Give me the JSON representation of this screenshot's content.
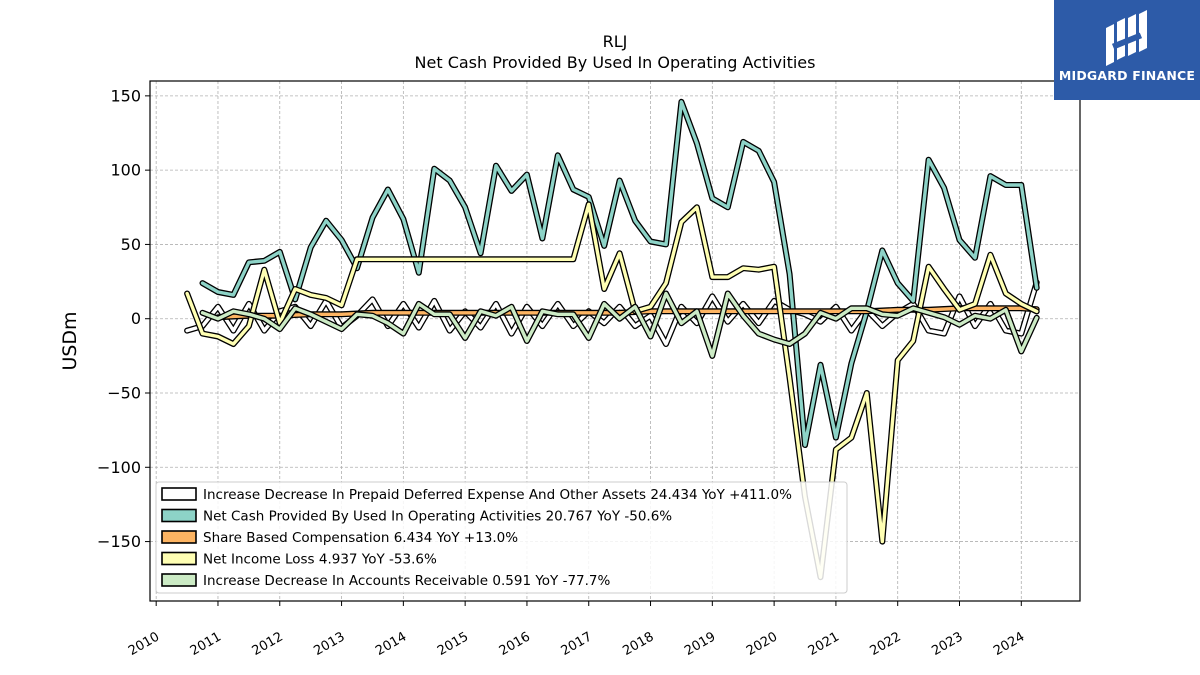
{
  "logo": {
    "text": "MIDGARD FINANCE"
  },
  "chart_data": {
    "type": "line",
    "title": "RLJ",
    "subtitle": "Net Cash Provided By Used In Operating Activities",
    "ylabel": "USDm",
    "xlabel": "",
    "ylim": [
      -190,
      160
    ],
    "xlim": [
      2009.9,
      2024.95
    ],
    "yticks": [
      -150,
      -100,
      -50,
      0,
      50,
      100,
      150
    ],
    "ytick_labels": [
      "−150",
      "−100",
      "−50",
      "0",
      "50",
      "100",
      "150"
    ],
    "xticks": [
      2010,
      2011,
      2012,
      2013,
      2014,
      2015,
      2016,
      2017,
      2018,
      2019,
      2020,
      2021,
      2022,
      2023,
      2024
    ],
    "xtick_labels": [
      "2010",
      "2011",
      "2012",
      "2013",
      "2014",
      "2015",
      "2016",
      "2017",
      "2018",
      "2019",
      "2020",
      "2021",
      "2022",
      "2023",
      "2024"
    ],
    "grid": true,
    "legend_position": "lower-left",
    "series": [
      {
        "name": "Increase Decrease In Prepaid Deferred Expense And Other Assets",
        "legend_label": "Increase Decrease In Prepaid Deferred Expense And Other Assets  24.434 YoY +411.0%",
        "color": "#ffffff",
        "x": [
          2010.5,
          2010.75,
          2011.0,
          2011.25,
          2011.5,
          2011.75,
          2012.0,
          2012.25,
          2012.5,
          2012.75,
          2013.0,
          2013.25,
          2013.5,
          2013.75,
          2014.0,
          2014.25,
          2014.5,
          2014.75,
          2015.0,
          2015.25,
          2015.5,
          2015.75,
          2016.0,
          2016.25,
          2016.5,
          2016.75,
          2017.0,
          2017.25,
          2017.5,
          2017.75,
          2018.0,
          2018.25,
          2018.5,
          2018.75,
          2019.0,
          2019.25,
          2019.5,
          2019.75,
          2020.0,
          2020.25,
          2020.5,
          2020.75,
          2021.0,
          2021.25,
          2021.5,
          2021.75,
          2022.0,
          2022.25,
          2022.5,
          2022.75,
          2023.0,
          2023.25,
          2023.5,
          2023.75,
          2024.0,
          2024.25
        ],
        "y": [
          -8,
          -5,
          8,
          -8,
          10,
          -8,
          5,
          8,
          -5,
          12,
          -6,
          2,
          13,
          -5,
          10,
          -6,
          12,
          -8,
          5,
          -6,
          10,
          -10,
          8,
          -5,
          10,
          -5,
          5,
          -3,
          8,
          -5,
          2,
          -17,
          8,
          -3,
          15,
          -2,
          10,
          -3,
          12,
          6,
          3,
          -2,
          8,
          -8,
          6,
          -5,
          4,
          10,
          -8,
          -10,
          15,
          -5,
          10,
          -8,
          -10,
          24.434
        ]
      },
      {
        "name": "Net Cash Provided By Used In Operating Activities",
        "legend_label": "Net Cash Provided By Used In Operating Activities  20.767 YoY -50.6%",
        "color": "#8dd3c7",
        "x": [
          2010.75,
          2011.0,
          2011.25,
          2011.5,
          2011.75,
          2012.0,
          2012.25,
          2012.5,
          2012.75,
          2013.0,
          2013.25,
          2013.5,
          2013.75,
          2014.0,
          2014.25,
          2014.5,
          2014.75,
          2015.0,
          2015.25,
          2015.5,
          2015.75,
          2016.0,
          2016.25,
          2016.5,
          2016.75,
          2017.0,
          2017.25,
          2017.5,
          2017.75,
          2018.0,
          2018.25,
          2018.5,
          2018.75,
          2019.0,
          2019.25,
          2019.5,
          2019.75,
          2020.0,
          2020.25,
          2020.5,
          2020.75,
          2021.0,
          2021.25,
          2021.5,
          2021.75,
          2022.0,
          2022.25,
          2022.5,
          2022.75,
          2023.0,
          2023.25,
          2023.5,
          2023.75,
          2024.0,
          2024.25
        ],
        "y": [
          24,
          18,
          16,
          38,
          39,
          45,
          13,
          48,
          66,
          53,
          34,
          68,
          87,
          67,
          31,
          101,
          93,
          75,
          44,
          103,
          86,
          97,
          54,
          110,
          87,
          82,
          49,
          93,
          66,
          52,
          50,
          146,
          118,
          81,
          75,
          119,
          113,
          92,
          30,
          -85,
          -31,
          -80,
          -30,
          5,
          46,
          24,
          12,
          107,
          88,
          53,
          41,
          96,
          90,
          90,
          20.767
        ]
      },
      {
        "name": "Share Based Compensation",
        "legend_label": "Share Based Compensation  6.434 YoY +13.0%",
        "color": "#fdb462",
        "x": [
          2011.0,
          2011.5,
          2012.0,
          2012.5,
          2013.0,
          2013.5,
          2014.0,
          2014.5,
          2015.0,
          2015.5,
          2016.0,
          2016.5,
          2017.0,
          2017.5,
          2018.0,
          2018.5,
          2019.0,
          2019.5,
          2020.0,
          2020.5,
          2021.0,
          2021.5,
          2022.0,
          2022.5,
          2023.0,
          2023.5,
          2024.0,
          2024.25
        ],
        "y": [
          1,
          2,
          2,
          3,
          3,
          4,
          4,
          4,
          4,
          4,
          4,
          4,
          4,
          4,
          5,
          5,
          5,
          5,
          5,
          5,
          5,
          5,
          6,
          6,
          7,
          7,
          7,
          6.434
        ]
      },
      {
        "name": "Net Income Loss",
        "legend_label": "Net Income Loss  4.937 YoY -53.6%",
        "color": "#ffffb3",
        "x": [
          2010.5,
          2010.75,
          2011.0,
          2011.25,
          2011.5,
          2011.75,
          2012.0,
          2012.25,
          2012.5,
          2012.75,
          2013.0,
          2013.25,
          2013.5,
          2013.75,
          2014.0,
          2014.25,
          2014.5,
          2014.75,
          2015.0,
          2015.25,
          2015.5,
          2015.75,
          2016.0,
          2016.25,
          2016.5,
          2016.75,
          2017.0,
          2017.25,
          2017.5,
          2017.75,
          2018.0,
          2018.25,
          2018.5,
          2018.75,
          2019.0,
          2019.25,
          2019.5,
          2019.75,
          2020.0,
          2020.25,
          2020.5,
          2020.75,
          2021.0,
          2021.25,
          2021.5,
          2021.75,
          2022.0,
          2022.25,
          2022.5,
          2022.75,
          2023.0,
          2023.25,
          2023.5,
          2023.75,
          2024.0,
          2024.25
        ],
        "y": [
          17,
          -10,
          -12,
          -17,
          -5,
          33,
          -3,
          20,
          16,
          14,
          9,
          40,
          40,
          40,
          40,
          40,
          40,
          40,
          40,
          40,
          40,
          40,
          40,
          40,
          40,
          40,
          77,
          20,
          44,
          5,
          8,
          24,
          65,
          75,
          28,
          28,
          34,
          33,
          35,
          -40,
          -120,
          -174,
          -88,
          -80,
          -50,
          -150,
          -28,
          -15,
          35,
          20,
          6,
          10,
          43,
          17,
          10,
          4.937
        ]
      },
      {
        "name": "Increase Decrease In Accounts Receivable",
        "legend_label": "Increase Decrease In Accounts Receivable  0.591 YoY -77.7%",
        "color": "#ccebc5",
        "x": [
          2010.75,
          2011.0,
          2011.25,
          2011.5,
          2011.75,
          2012.0,
          2012.25,
          2012.5,
          2012.75,
          2013.0,
          2013.25,
          2013.5,
          2013.75,
          2014.0,
          2014.25,
          2014.5,
          2014.75,
          2015.0,
          2015.25,
          2015.5,
          2015.75,
          2016.0,
          2016.25,
          2016.5,
          2016.75,
          2017.0,
          2017.25,
          2017.5,
          2017.75,
          2018.0,
          2018.25,
          2018.5,
          2018.75,
          2019.0,
          2019.25,
          2019.5,
          2019.75,
          2020.0,
          2020.25,
          2020.5,
          2020.75,
          2021.0,
          2021.25,
          2021.5,
          2021.75,
          2022.0,
          2022.25,
          2022.5,
          2022.75,
          2023.0,
          2023.25,
          2023.5,
          2023.75,
          2024.0,
          2024.25
        ],
        "y": [
          4,
          0,
          5,
          3,
          0,
          -7,
          7,
          3,
          -2,
          -7,
          3,
          2,
          -3,
          -10,
          10,
          3,
          3,
          -13,
          5,
          2,
          8,
          -15,
          5,
          3,
          3,
          -13,
          10,
          0,
          8,
          -12,
          17,
          -3,
          5,
          -25,
          17,
          2,
          -10,
          -14,
          -17,
          -10,
          4,
          0,
          7,
          7,
          3,
          2,
          7,
          4,
          1,
          -4,
          2,
          0,
          6,
          -22,
          0.591
        ]
      }
    ]
  }
}
